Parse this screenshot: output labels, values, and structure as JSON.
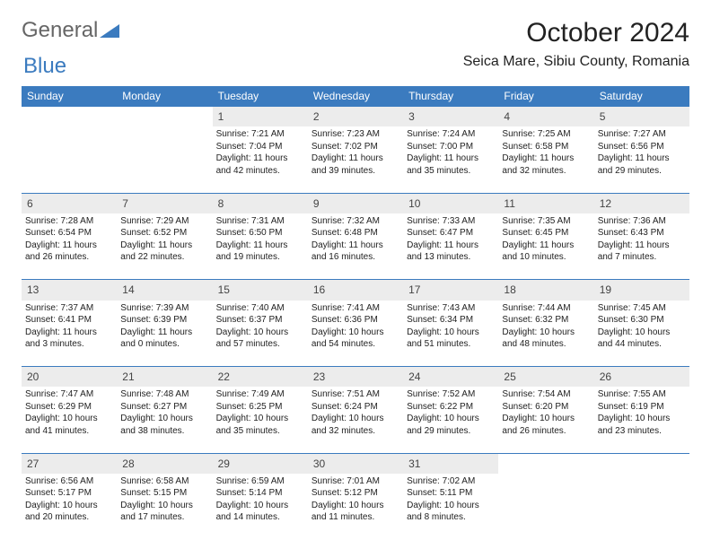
{
  "logo": {
    "general": "General",
    "blue": "Blue"
  },
  "title": "October 2024",
  "location": "Seica Mare, Sibiu County, Romania",
  "colors": {
    "header_bg": "#3b7bbf",
    "header_fg": "#ffffff",
    "daynum_bg": "#ececec",
    "text": "#222222",
    "page_bg": "#ffffff",
    "row_separator": "#3b7bbf"
  },
  "daynames": [
    "Sunday",
    "Monday",
    "Tuesday",
    "Wednesday",
    "Thursday",
    "Friday",
    "Saturday"
  ],
  "weeks": [
    [
      null,
      null,
      {
        "n": "1",
        "sr": "7:21 AM",
        "ss": "7:04 PM",
        "dl": "11 hours and 42 minutes."
      },
      {
        "n": "2",
        "sr": "7:23 AM",
        "ss": "7:02 PM",
        "dl": "11 hours and 39 minutes."
      },
      {
        "n": "3",
        "sr": "7:24 AM",
        "ss": "7:00 PM",
        "dl": "11 hours and 35 minutes."
      },
      {
        "n": "4",
        "sr": "7:25 AM",
        "ss": "6:58 PM",
        "dl": "11 hours and 32 minutes."
      },
      {
        "n": "5",
        "sr": "7:27 AM",
        "ss": "6:56 PM",
        "dl": "11 hours and 29 minutes."
      }
    ],
    [
      {
        "n": "6",
        "sr": "7:28 AM",
        "ss": "6:54 PM",
        "dl": "11 hours and 26 minutes."
      },
      {
        "n": "7",
        "sr": "7:29 AM",
        "ss": "6:52 PM",
        "dl": "11 hours and 22 minutes."
      },
      {
        "n": "8",
        "sr": "7:31 AM",
        "ss": "6:50 PM",
        "dl": "11 hours and 19 minutes."
      },
      {
        "n": "9",
        "sr": "7:32 AM",
        "ss": "6:48 PM",
        "dl": "11 hours and 16 minutes."
      },
      {
        "n": "10",
        "sr": "7:33 AM",
        "ss": "6:47 PM",
        "dl": "11 hours and 13 minutes."
      },
      {
        "n": "11",
        "sr": "7:35 AM",
        "ss": "6:45 PM",
        "dl": "11 hours and 10 minutes."
      },
      {
        "n": "12",
        "sr": "7:36 AM",
        "ss": "6:43 PM",
        "dl": "11 hours and 7 minutes."
      }
    ],
    [
      {
        "n": "13",
        "sr": "7:37 AM",
        "ss": "6:41 PM",
        "dl": "11 hours and 3 minutes."
      },
      {
        "n": "14",
        "sr": "7:39 AM",
        "ss": "6:39 PM",
        "dl": "11 hours and 0 minutes."
      },
      {
        "n": "15",
        "sr": "7:40 AM",
        "ss": "6:37 PM",
        "dl": "10 hours and 57 minutes."
      },
      {
        "n": "16",
        "sr": "7:41 AM",
        "ss": "6:36 PM",
        "dl": "10 hours and 54 minutes."
      },
      {
        "n": "17",
        "sr": "7:43 AM",
        "ss": "6:34 PM",
        "dl": "10 hours and 51 minutes."
      },
      {
        "n": "18",
        "sr": "7:44 AM",
        "ss": "6:32 PM",
        "dl": "10 hours and 48 minutes."
      },
      {
        "n": "19",
        "sr": "7:45 AM",
        "ss": "6:30 PM",
        "dl": "10 hours and 44 minutes."
      }
    ],
    [
      {
        "n": "20",
        "sr": "7:47 AM",
        "ss": "6:29 PM",
        "dl": "10 hours and 41 minutes."
      },
      {
        "n": "21",
        "sr": "7:48 AM",
        "ss": "6:27 PM",
        "dl": "10 hours and 38 minutes."
      },
      {
        "n": "22",
        "sr": "7:49 AM",
        "ss": "6:25 PM",
        "dl": "10 hours and 35 minutes."
      },
      {
        "n": "23",
        "sr": "7:51 AM",
        "ss": "6:24 PM",
        "dl": "10 hours and 32 minutes."
      },
      {
        "n": "24",
        "sr": "7:52 AM",
        "ss": "6:22 PM",
        "dl": "10 hours and 29 minutes."
      },
      {
        "n": "25",
        "sr": "7:54 AM",
        "ss": "6:20 PM",
        "dl": "10 hours and 26 minutes."
      },
      {
        "n": "26",
        "sr": "7:55 AM",
        "ss": "6:19 PM",
        "dl": "10 hours and 23 minutes."
      }
    ],
    [
      {
        "n": "27",
        "sr": "6:56 AM",
        "ss": "5:17 PM",
        "dl": "10 hours and 20 minutes."
      },
      {
        "n": "28",
        "sr": "6:58 AM",
        "ss": "5:15 PM",
        "dl": "10 hours and 17 minutes."
      },
      {
        "n": "29",
        "sr": "6:59 AM",
        "ss": "5:14 PM",
        "dl": "10 hours and 14 minutes."
      },
      {
        "n": "30",
        "sr": "7:01 AM",
        "ss": "5:12 PM",
        "dl": "10 hours and 11 minutes."
      },
      {
        "n": "31",
        "sr": "7:02 AM",
        "ss": "5:11 PM",
        "dl": "10 hours and 8 minutes."
      },
      null,
      null
    ]
  ],
  "labels": {
    "sunrise": "Sunrise: ",
    "sunset": "Sunset: ",
    "daylight": "Daylight: "
  }
}
